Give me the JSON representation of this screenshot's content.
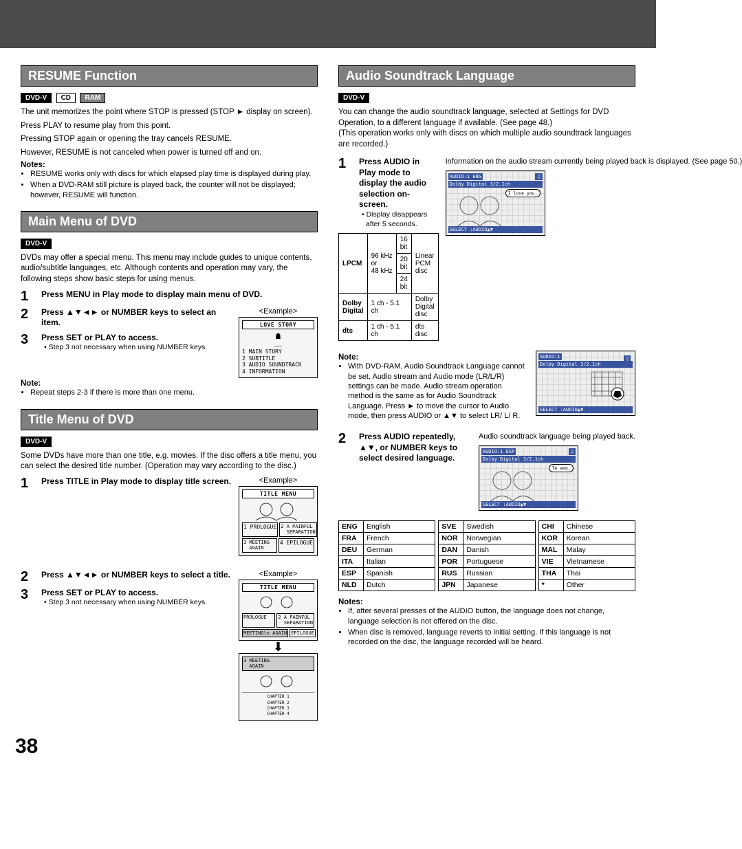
{
  "page_number": "38",
  "left": {
    "resume": {
      "title": "RESUME Function",
      "badges": [
        "DVD-V",
        "CD",
        "RAM"
      ],
      "p1": "The unit memorizes the point where STOP is pressed (STOP ► display on screen).",
      "p2": "Press PLAY to resume play from this point.",
      "p3": "Pressing STOP again or opening the tray cancels RESUME.",
      "p4": "However, RESUME is not canceled when power is turned off and on.",
      "notes_head": "Notes:",
      "notes": [
        "RESUME works only with discs for which elapsed play time is displayed during play.",
        "When a DVD-RAM still picture is played back, the counter will not be displayed; however, RESUME will function."
      ]
    },
    "mainmenu": {
      "title": "Main Menu of DVD",
      "badges": [
        "DVD-V"
      ],
      "intro": "DVDs may offer a special menu. This menu may include guides to unique contents, audio/subtitle languages, etc. Although contents and operation may vary, the following steps show basic steps for using menus.",
      "step1": "Press MENU in Play mode to display main menu of DVD.",
      "step2": "Press ▲▼◄► or NUMBER keys to select an item.",
      "step3": "Press SET or PLAY to access.",
      "step3_sub": "• Step 3 not necessary when using NUMBER keys.",
      "example_label": "<Example>",
      "ex_title": "LOVE STORY",
      "ex_items": "1 MAIN STORY\n2 SUBTITLE\n3 AUDIO SOUNDTRACK\n4 INFORMATION",
      "note_head": "Note:",
      "note": "Repeat steps 2-3 if there is more than one menu."
    },
    "titlemenu": {
      "title": "Title Menu of DVD",
      "badges": [
        "DVD-V"
      ],
      "intro": "Some DVDs have more than one title, e.g. movies. If the disc offers a title menu, you can select the desired title number. (Operation may vary according to the disc.)",
      "step1": "Press TITLE in Play mode to display title screen.",
      "step2": "Press ▲▼◄► or NUMBER keys to select a title.",
      "step3": "Press SET or PLAY to access.",
      "step3_sub": "• Step 3 not necessary when using NUMBER keys.",
      "example_label": "<Example>",
      "ex_title": "TITLE MENU",
      "ex_1": "1 PROLOGUE",
      "ex_2": "2 A PAINFUL\n  SEPARATION",
      "ex_3": "3 MEETING\n  AGAIN",
      "ex_4": "4 EPILOGUE",
      "ex2_sel": "3 MEETING\n  AGAIN",
      "ex2_chap": "CHAPTER 1\nCHAPTER 2\nCHAPTER 3\nCHAPTER 4"
    }
  },
  "right": {
    "title": "Audio Soundtrack Language",
    "badges": [
      "DVD-V"
    ],
    "intro": "You can change the audio soundtrack language, selected at Settings for DVD Operation, to a different language if available. (See page 48.)\n(This operation works only with discs on which multiple audio soundtrack languages are recorded.)",
    "step1": "Press AUDIO in Play mode to display the audio selection on-screen.",
    "step1_sub": "• Display disappears after 5 seconds.",
    "side1": "Information on the audio stream currently being played back is displayed. (See page 50.)",
    "spec": {
      "lpcm": "LPCM",
      "lpcm_f": "96 kHz\nor\n48 kHz",
      "b16": "16 bit",
      "b20": "20 bit",
      "b24": "24 bit",
      "lpcm_d": "Linear PCM disc",
      "dolby": "Dolby Digital",
      "ch": "1 ch - 5.1 ch",
      "dolby_d": "Dolby Digital disc",
      "dts": "dts",
      "dts_d": "dts disc"
    },
    "note_head": "Note:",
    "note": "With DVD-RAM, Audio Soundtrack Language cannot be set. Audio stream and Audio mode (LR/L/R) settings can be made. Audio stream operation method is the same as for Audio Soundtrack Language. Press ► to move the cursor to Audio mode, then press AUDIO or ▲▼ to select LR/ L/ R.",
    "step2": "Press AUDIO repeatedly, ▲▼, or NUMBER keys to select desired language.",
    "side2": "Audio soundtrack language being played back.",
    "osd1_top": "AUDIO:1 ENG",
    "osd1_sub": "Dolby Digital 3/2.1ch",
    "osd1_bubble": "I love you.",
    "osd_bot": "SELECT  :AUDIO▲▼",
    "osd2_top": "AUDIO:1",
    "osd2_sub": "Dolby Digital 3/2.1ch",
    "osd3_top": "AUDIO:1 ESP",
    "osd3_sub": "Dolby Digital 3/2.1ch",
    "osd3_bubble": "Te amo.",
    "langs": [
      [
        [
          "ENG",
          "English"
        ],
        [
          "FRA",
          "French"
        ],
        [
          "DEU",
          "German"
        ],
        [
          "ITA",
          "Italian"
        ],
        [
          "ESP",
          "Spanish"
        ],
        [
          "NLD",
          "Dutch"
        ]
      ],
      [
        [
          "SVE",
          "Swedish"
        ],
        [
          "NOR",
          "Norwegian"
        ],
        [
          "DAN",
          "Danish"
        ],
        [
          "POR",
          "Portuguese"
        ],
        [
          "RUS",
          "Russian"
        ],
        [
          "JPN",
          "Japanese"
        ]
      ],
      [
        [
          "CHI",
          "Chinese"
        ],
        [
          "KOR",
          "Korean"
        ],
        [
          "MAL",
          "Malay"
        ],
        [
          "VIE",
          "Vietnamese"
        ],
        [
          "THA",
          "Thai"
        ],
        [
          "*",
          "Other"
        ]
      ]
    ],
    "notes_head": "Notes:",
    "notes": [
      "If, after several presses of the AUDIO button, the language does not change, language selection is not offered on the disc.",
      "When disc is removed, language reverts to initial setting. If this language is not recorded on the disc, the language recorded will be heard."
    ]
  }
}
